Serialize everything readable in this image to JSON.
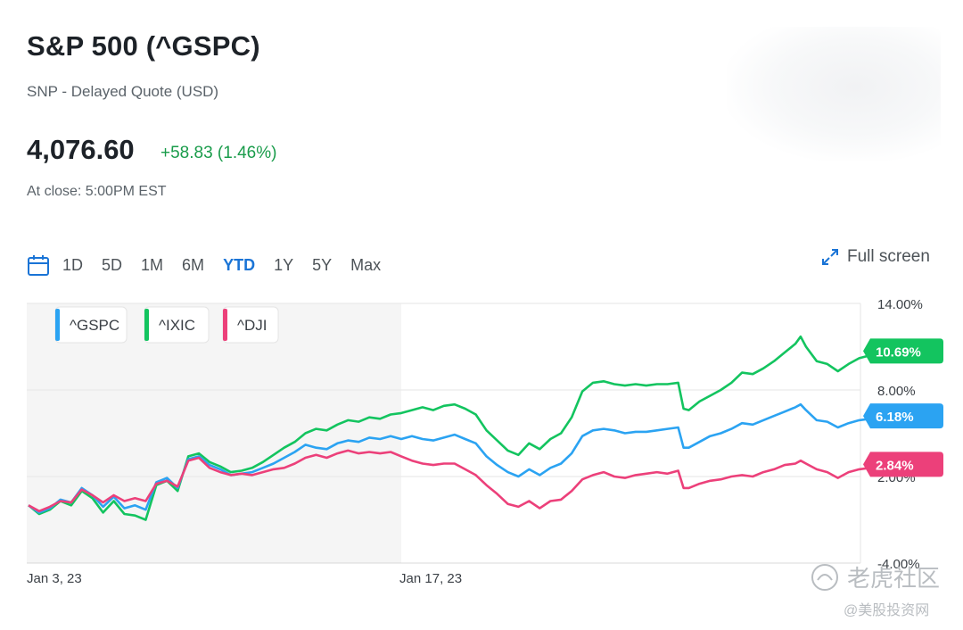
{
  "header": {
    "title": "S&P 500 (^GSPC)",
    "subtitle": "SNP - Delayed Quote (USD)",
    "price": "4,076.60",
    "change": "+58.83 (1.46%)",
    "close_time": "At close: 5:00PM EST"
  },
  "toolbar": {
    "ranges": [
      "1D",
      "5D",
      "1M",
      "6M",
      "YTD",
      "1Y",
      "5Y",
      "Max"
    ],
    "active_range": "YTD",
    "fullscreen_label": "Full screen"
  },
  "colors": {
    "gspc": "#2ba3f2",
    "ixic": "#13c45f",
    "dji": "#ec407a",
    "accent": "#1a74d6",
    "up": "#1a9c4b"
  },
  "watermark": {
    "line1": "老虎社区",
    "line2": "@美股投资网"
  },
  "chart_data": {
    "type": "line",
    "title": "",
    "xlabel": "",
    "ylabel": "",
    "x_ticks": [
      {
        "label": "Jan 3, 23",
        "day": 0
      },
      {
        "label": "Jan 17, 23",
        "day": 14
      }
    ],
    "x_range_days": [
      0,
      31
    ],
    "ylim": [
      -4,
      14
    ],
    "y_ticks": [
      {
        "value": 14,
        "label": "14.00%"
      },
      {
        "value": 8,
        "label": "8.00%"
      },
      {
        "value": 2,
        "label": "2.00%"
      },
      {
        "value": -4,
        "label": "-4.00%"
      }
    ],
    "grid": true,
    "legend_position": "top-left",
    "series": [
      {
        "name": "^GSPC",
        "color_key": "gspc",
        "last_label": "6.18%",
        "points": [
          [
            0,
            0.0
          ],
          [
            0.4,
            -0.5
          ],
          [
            0.8,
            -0.2
          ],
          [
            1.2,
            0.4
          ],
          [
            1.6,
            0.2
          ],
          [
            2.0,
            1.2
          ],
          [
            2.4,
            0.7
          ],
          [
            2.8,
            -0.1
          ],
          [
            3.2,
            0.6
          ],
          [
            3.6,
            -0.2
          ],
          [
            4.0,
            0.0
          ],
          [
            4.4,
            -0.3
          ],
          [
            4.8,
            1.6
          ],
          [
            5.2,
            1.9
          ],
          [
            5.6,
            1.2
          ],
          [
            6.0,
            3.2
          ],
          [
            6.4,
            3.4
          ],
          [
            6.8,
            2.8
          ],
          [
            7.2,
            2.5
          ],
          [
            7.6,
            2.1
          ],
          [
            8.0,
            2.2
          ],
          [
            8.4,
            2.3
          ],
          [
            8.8,
            2.6
          ],
          [
            9.2,
            2.9
          ],
          [
            9.6,
            3.3
          ],
          [
            10.0,
            3.7
          ],
          [
            10.4,
            4.2
          ],
          [
            10.8,
            4.0
          ],
          [
            11.2,
            3.9
          ],
          [
            11.6,
            4.3
          ],
          [
            12.0,
            4.5
          ],
          [
            12.4,
            4.4
          ],
          [
            12.8,
            4.7
          ],
          [
            13.2,
            4.6
          ],
          [
            13.6,
            4.8
          ],
          [
            14.0,
            4.6
          ],
          [
            14.4,
            4.8
          ],
          [
            14.8,
            4.6
          ],
          [
            15.2,
            4.5
          ],
          [
            15.6,
            4.7
          ],
          [
            16.0,
            4.9
          ],
          [
            16.4,
            4.6
          ],
          [
            16.8,
            4.3
          ],
          [
            17.2,
            3.4
          ],
          [
            17.6,
            2.8
          ],
          [
            18.0,
            2.3
          ],
          [
            18.4,
            2.0
          ],
          [
            18.8,
            2.5
          ],
          [
            19.2,
            2.1
          ],
          [
            19.6,
            2.6
          ],
          [
            20.0,
            2.9
          ],
          [
            20.4,
            3.6
          ],
          [
            20.8,
            4.8
          ],
          [
            21.2,
            5.2
          ],
          [
            21.6,
            5.3
          ],
          [
            22.0,
            5.2
          ],
          [
            22.4,
            5.0
          ],
          [
            22.8,
            5.1
          ],
          [
            23.2,
            5.1
          ],
          [
            23.6,
            5.2
          ],
          [
            24.0,
            5.3
          ],
          [
            24.4,
            5.4
          ],
          [
            24.6,
            4.0
          ],
          [
            24.8,
            4.0
          ],
          [
            25.2,
            4.4
          ],
          [
            25.6,
            4.8
          ],
          [
            26.0,
            5.0
          ],
          [
            26.4,
            5.3
          ],
          [
            26.8,
            5.7
          ],
          [
            27.2,
            5.6
          ],
          [
            27.6,
            5.9
          ],
          [
            28.0,
            6.2
          ],
          [
            28.4,
            6.5
          ],
          [
            28.8,
            6.8
          ],
          [
            29.0,
            7.0
          ],
          [
            29.2,
            6.6
          ],
          [
            29.6,
            5.9
          ],
          [
            30.0,
            5.8
          ],
          [
            30.4,
            5.4
          ],
          [
            30.8,
            5.7
          ],
          [
            31.2,
            5.9
          ],
          [
            31.6,
            6.0
          ],
          [
            31.8,
            6.2
          ]
        ]
      },
      {
        "name": "^IXIC",
        "color_key": "ixic",
        "last_label": "10.69%",
        "points": [
          [
            0,
            0.0
          ],
          [
            0.4,
            -0.6
          ],
          [
            0.8,
            -0.3
          ],
          [
            1.2,
            0.3
          ],
          [
            1.6,
            0.0
          ],
          [
            2.0,
            1.0
          ],
          [
            2.4,
            0.5
          ],
          [
            2.8,
            -0.5
          ],
          [
            3.2,
            0.3
          ],
          [
            3.6,
            -0.6
          ],
          [
            4.0,
            -0.7
          ],
          [
            4.4,
            -1.0
          ],
          [
            4.8,
            1.4
          ],
          [
            5.2,
            1.7
          ],
          [
            5.6,
            1.0
          ],
          [
            6.0,
            3.4
          ],
          [
            6.4,
            3.6
          ],
          [
            6.8,
            3.0
          ],
          [
            7.2,
            2.7
          ],
          [
            7.6,
            2.3
          ],
          [
            8.0,
            2.4
          ],
          [
            8.4,
            2.6
          ],
          [
            8.8,
            3.0
          ],
          [
            9.2,
            3.5
          ],
          [
            9.6,
            4.0
          ],
          [
            10.0,
            4.4
          ],
          [
            10.4,
            5.0
          ],
          [
            10.8,
            5.3
          ],
          [
            11.2,
            5.2
          ],
          [
            11.6,
            5.6
          ],
          [
            12.0,
            5.9
          ],
          [
            12.4,
            5.8
          ],
          [
            12.8,
            6.1
          ],
          [
            13.2,
            6.0
          ],
          [
            13.6,
            6.3
          ],
          [
            14.0,
            6.4
          ],
          [
            14.4,
            6.6
          ],
          [
            14.8,
            6.8
          ],
          [
            15.2,
            6.6
          ],
          [
            15.6,
            6.9
          ],
          [
            16.0,
            7.0
          ],
          [
            16.4,
            6.7
          ],
          [
            16.8,
            6.3
          ],
          [
            17.2,
            5.2
          ],
          [
            17.6,
            4.5
          ],
          [
            18.0,
            3.8
          ],
          [
            18.4,
            3.5
          ],
          [
            18.8,
            4.3
          ],
          [
            19.2,
            3.9
          ],
          [
            19.6,
            4.6
          ],
          [
            20.0,
            5.0
          ],
          [
            20.4,
            6.1
          ],
          [
            20.8,
            7.9
          ],
          [
            21.2,
            8.5
          ],
          [
            21.6,
            8.6
          ],
          [
            22.0,
            8.4
          ],
          [
            22.4,
            8.3
          ],
          [
            22.8,
            8.4
          ],
          [
            23.2,
            8.3
          ],
          [
            23.6,
            8.4
          ],
          [
            24.0,
            8.4
          ],
          [
            24.4,
            8.5
          ],
          [
            24.6,
            6.7
          ],
          [
            24.8,
            6.6
          ],
          [
            25.2,
            7.2
          ],
          [
            25.6,
            7.6
          ],
          [
            26.0,
            8.0
          ],
          [
            26.4,
            8.5
          ],
          [
            26.8,
            9.2
          ],
          [
            27.2,
            9.1
          ],
          [
            27.6,
            9.5
          ],
          [
            28.0,
            10.0
          ],
          [
            28.4,
            10.6
          ],
          [
            28.8,
            11.2
          ],
          [
            29.0,
            11.7
          ],
          [
            29.2,
            11.0
          ],
          [
            29.6,
            10.0
          ],
          [
            30.0,
            9.8
          ],
          [
            30.4,
            9.3
          ],
          [
            30.8,
            9.8
          ],
          [
            31.2,
            10.2
          ],
          [
            31.6,
            10.4
          ],
          [
            31.8,
            10.7
          ]
        ]
      },
      {
        "name": "^DJI",
        "color_key": "dji",
        "last_label": "2.84%",
        "points": [
          [
            0,
            0.0
          ],
          [
            0.4,
            -0.4
          ],
          [
            0.8,
            -0.1
          ],
          [
            1.2,
            0.3
          ],
          [
            1.6,
            0.2
          ],
          [
            2.0,
            1.1
          ],
          [
            2.4,
            0.7
          ],
          [
            2.8,
            0.2
          ],
          [
            3.2,
            0.7
          ],
          [
            3.6,
            0.3
          ],
          [
            4.0,
            0.5
          ],
          [
            4.4,
            0.3
          ],
          [
            4.8,
            1.5
          ],
          [
            5.2,
            1.7
          ],
          [
            5.6,
            1.3
          ],
          [
            6.0,
            3.1
          ],
          [
            6.4,
            3.3
          ],
          [
            6.8,
            2.6
          ],
          [
            7.2,
            2.3
          ],
          [
            7.6,
            2.1
          ],
          [
            8.0,
            2.2
          ],
          [
            8.4,
            2.1
          ],
          [
            8.8,
            2.3
          ],
          [
            9.2,
            2.5
          ],
          [
            9.6,
            2.6
          ],
          [
            10.0,
            2.9
          ],
          [
            10.4,
            3.3
          ],
          [
            10.8,
            3.5
          ],
          [
            11.2,
            3.3
          ],
          [
            11.6,
            3.6
          ],
          [
            12.0,
            3.8
          ],
          [
            12.4,
            3.6
          ],
          [
            12.8,
            3.7
          ],
          [
            13.2,
            3.6
          ],
          [
            13.6,
            3.7
          ],
          [
            14.0,
            3.4
          ],
          [
            14.4,
            3.1
          ],
          [
            14.8,
            2.9
          ],
          [
            15.2,
            2.8
          ],
          [
            15.6,
            2.9
          ],
          [
            16.0,
            2.9
          ],
          [
            16.4,
            2.5
          ],
          [
            16.8,
            2.1
          ],
          [
            17.2,
            1.4
          ],
          [
            17.6,
            0.8
          ],
          [
            18.0,
            0.1
          ],
          [
            18.4,
            -0.1
          ],
          [
            18.8,
            0.3
          ],
          [
            19.2,
            -0.2
          ],
          [
            19.6,
            0.3
          ],
          [
            20.0,
            0.4
          ],
          [
            20.4,
            1.0
          ],
          [
            20.8,
            1.8
          ],
          [
            21.2,
            2.1
          ],
          [
            21.6,
            2.3
          ],
          [
            22.0,
            2.0
          ],
          [
            22.4,
            1.9
          ],
          [
            22.8,
            2.1
          ],
          [
            23.2,
            2.2
          ],
          [
            23.6,
            2.3
          ],
          [
            24.0,
            2.2
          ],
          [
            24.4,
            2.4
          ],
          [
            24.6,
            1.2
          ],
          [
            24.8,
            1.2
          ],
          [
            25.2,
            1.5
          ],
          [
            25.6,
            1.7
          ],
          [
            26.0,
            1.8
          ],
          [
            26.4,
            2.0
          ],
          [
            26.8,
            2.1
          ],
          [
            27.2,
            2.0
          ],
          [
            27.6,
            2.3
          ],
          [
            28.0,
            2.5
          ],
          [
            28.4,
            2.8
          ],
          [
            28.8,
            2.9
          ],
          [
            29.0,
            3.1
          ],
          [
            29.2,
            2.9
          ],
          [
            29.6,
            2.5
          ],
          [
            30.0,
            2.3
          ],
          [
            30.4,
            1.9
          ],
          [
            30.8,
            2.3
          ],
          [
            31.2,
            2.5
          ],
          [
            31.6,
            2.6
          ],
          [
            31.8,
            2.84
          ]
        ]
      }
    ]
  }
}
